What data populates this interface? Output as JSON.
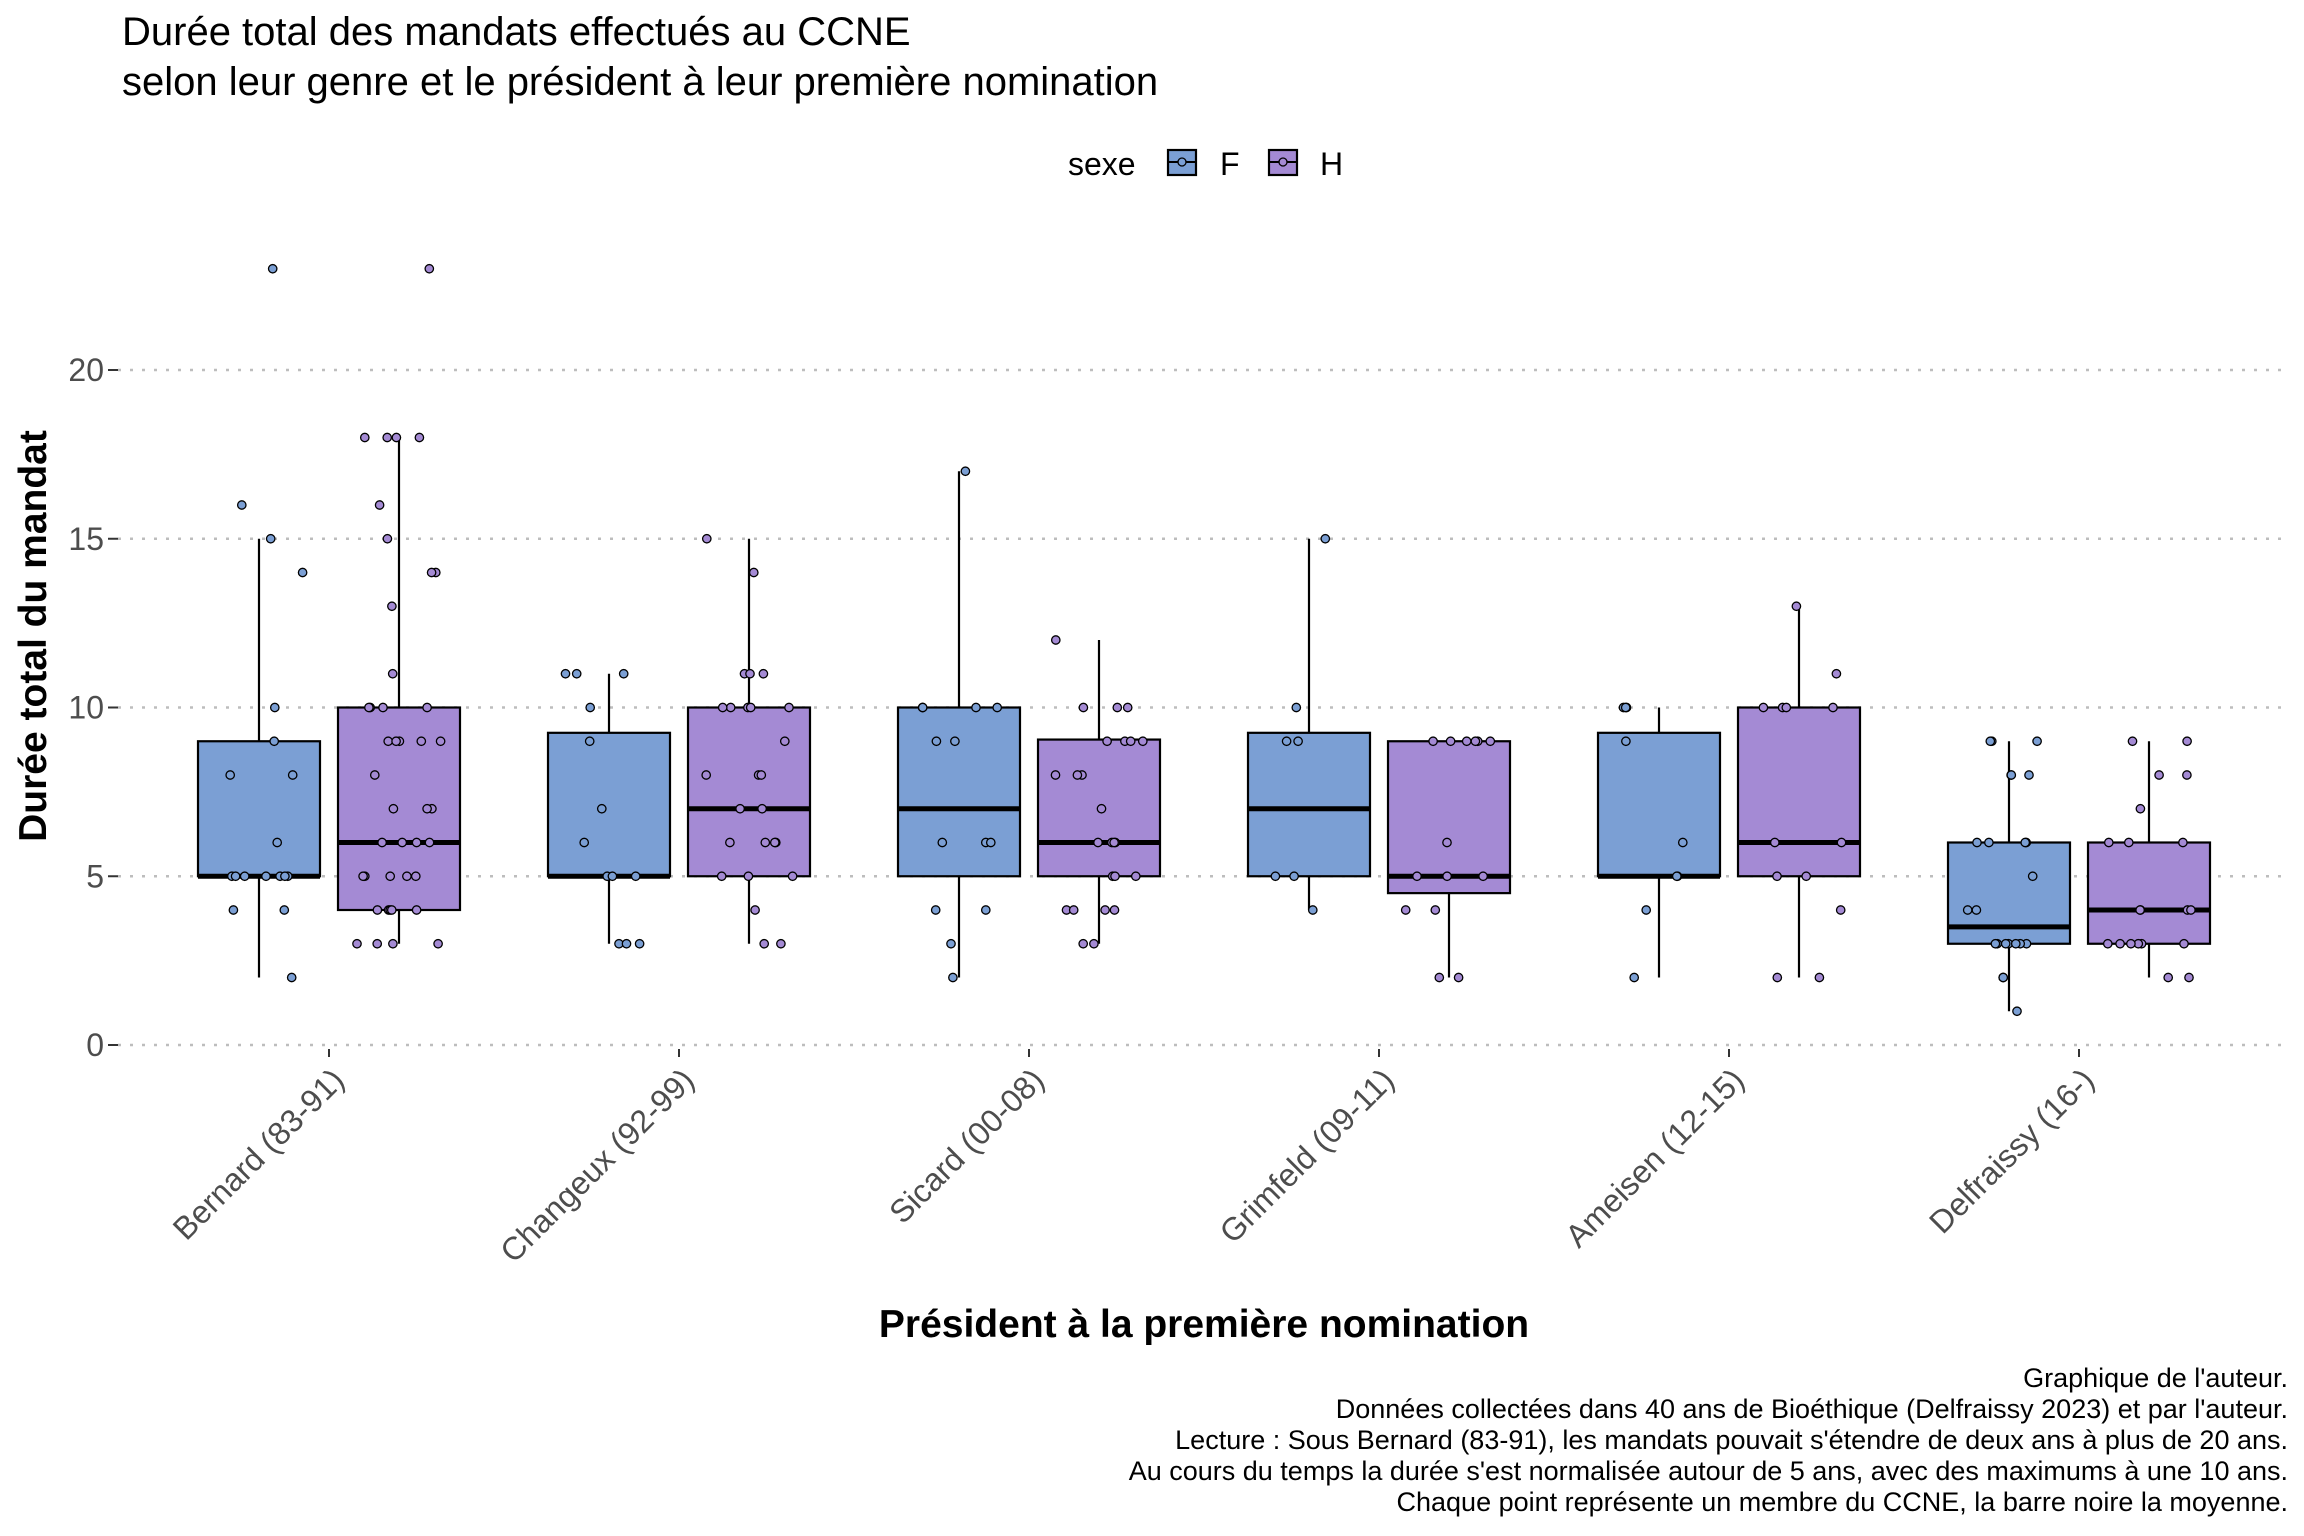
{
  "chart_data": {
    "type": "boxplot",
    "title_lines": [
      "Durée total des mandats effectués au CCNE",
      "selon leur genre et le président à leur première nomination"
    ],
    "xlabel": "Président à la première nomination",
    "ylabel": "Durée total du mandat",
    "ylim": [
      0,
      23.5
    ],
    "y_ticks": [
      0,
      5,
      10,
      15,
      20
    ],
    "grid": "horizontal dotted",
    "legend": {
      "title": "sexe",
      "position": "top",
      "items": [
        {
          "key": "F",
          "label": "F",
          "color": "#7b9fd4"
        },
        {
          "key": "H",
          "label": "H",
          "color": "#a48ad4"
        }
      ]
    },
    "categories": [
      "Bernard (83-91)",
      "Changeux (92-99)",
      "Sicard (00-08)",
      "Grimfeld (09-11)",
      "Ameisen (12-15)",
      "Delfraissy (16-)"
    ],
    "groups": [
      {
        "category": "Bernard (83-91)",
        "F": {
          "whisker_low": 2,
          "q1": 5,
          "median": 5,
          "q3": 9,
          "whisker_high": 15,
          "points": [
            23,
            16,
            15,
            14,
            10,
            9,
            8,
            8,
            6,
            5,
            5,
            5,
            5,
            5,
            5,
            5,
            4,
            4,
            2
          ]
        },
        "H": {
          "whisker_low": 3,
          "q1": 4,
          "median": 6,
          "q3": 10,
          "whisker_high": 18,
          "points": [
            23,
            18,
            18,
            18,
            18,
            16,
            15,
            14,
            14,
            13,
            11,
            10,
            10,
            10,
            10,
            9,
            9,
            9,
            9,
            9,
            8,
            7,
            7,
            7,
            6,
            6,
            6,
            6,
            5,
            5,
            5,
            5,
            5,
            4,
            4,
            4,
            4,
            4,
            3,
            3,
            3,
            3
          ]
        }
      },
      {
        "category": "Changeux (92-99)",
        "F": {
          "whisker_low": 3,
          "q1": 5,
          "median": 5,
          "q3": 9.25,
          "whisker_high": 11,
          "points": [
            11,
            11,
            11,
            10,
            9,
            7,
            6,
            5,
            5,
            5,
            3,
            3,
            3
          ]
        },
        "H": {
          "whisker_low": 3,
          "q1": 5,
          "median": 7,
          "q3": 10,
          "whisker_high": 15,
          "points": [
            15,
            14,
            11,
            11,
            11,
            10,
            10,
            10,
            10,
            10,
            9,
            8,
            8,
            8,
            7,
            7,
            6,
            6,
            6,
            6,
            5,
            5,
            5,
            4,
            3,
            3
          ]
        }
      },
      {
        "category": "Sicard (00-08)",
        "F": {
          "whisker_low": 2,
          "q1": 5,
          "median": 7,
          "q3": 10,
          "whisker_high": 17,
          "points": [
            17,
            10,
            10,
            10,
            10,
            9,
            9,
            6,
            6,
            6,
            4,
            4,
            3,
            2
          ]
        },
        "H": {
          "whisker_low": 3,
          "q1": 5,
          "median": 6,
          "q3": 9.05,
          "whisker_high": 12,
          "points": [
            12,
            10,
            10,
            10,
            9,
            9,
            9,
            9,
            8,
            8,
            8,
            7,
            6,
            6,
            6,
            6,
            5,
            5,
            5,
            4,
            4,
            4,
            4,
            3,
            3
          ]
        }
      },
      {
        "category": "Grimfeld (09-11)",
        "F": {
          "whisker_low": 4,
          "q1": 5,
          "median": 7,
          "q3": 9.25,
          "whisker_high": 15,
          "points": [
            15,
            10,
            9,
            9,
            5,
            5,
            4
          ]
        },
        "H": {
          "whisker_low": 2,
          "q1": 4.5,
          "median": 5,
          "q3": 9,
          "whisker_high": 9,
          "points": [
            9,
            9,
            9,
            9,
            9,
            9,
            6,
            5,
            5,
            5,
            4,
            4,
            2,
            2
          ]
        }
      },
      {
        "category": "Ameisen (12-15)",
        "F": {
          "whisker_low": 2,
          "q1": 5,
          "median": 5,
          "q3": 9.25,
          "whisker_high": 10,
          "points": [
            10,
            10,
            10,
            9,
            6,
            5,
            5,
            4,
            2
          ]
        },
        "H": {
          "whisker_low": 2,
          "q1": 5,
          "median": 6,
          "q3": 10,
          "whisker_high": 13,
          "points": [
            13,
            11,
            10,
            10,
            10,
            10,
            6,
            6,
            5,
            5,
            4,
            2,
            2
          ]
        }
      },
      {
        "category": "Delfraissy (16-)",
        "F": {
          "whisker_low": 1,
          "q1": 3,
          "median": 3.5,
          "q3": 6,
          "whisker_high": 9,
          "points": [
            9,
            9,
            9,
            8,
            8,
            8,
            6,
            6,
            6,
            6,
            5,
            4,
            4,
            3,
            3,
            3,
            3,
            3,
            3,
            3,
            2,
            2,
            1
          ]
        },
        "H": {
          "whisker_low": 2,
          "q1": 3,
          "median": 4,
          "q3": 6,
          "whisker_high": 9,
          "points": [
            9,
            9,
            8,
            8,
            7,
            6,
            6,
            6,
            4,
            4,
            4,
            4,
            3,
            3,
            3,
            3,
            3,
            3,
            2,
            2
          ]
        }
      }
    ],
    "caption_lines": [
      "Graphique de l'auteur.",
      "Données collectées dans 40 ans de Bioéthique (Delfraissy 2023) et par l'auteur.",
      "Lecture : Sous Bernard (83-91), les mandats pouvait s'étendre de deux ans à plus de 20 ans.",
      "Au cours du temps la durée s'est normalisée autour de 5 ans, avec des maximums à une 10 ans.",
      "Chaque point représente un membre du CCNE, la barre noire la moyenne."
    ]
  }
}
